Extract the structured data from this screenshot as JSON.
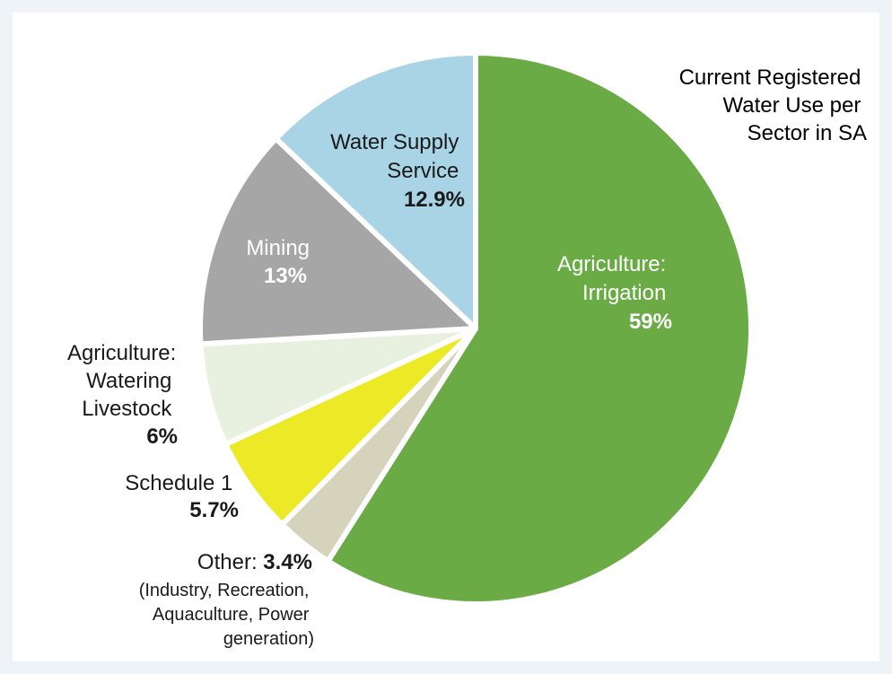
{
  "chart_data": {
    "type": "pie",
    "title": "Current Registered Water Use per Sector in SA",
    "title_lines": [
      "Current Registered",
      "Water Use per",
      "Sector in  SA"
    ],
    "slices": [
      {
        "name": "Agriculture: Irrigation",
        "name_lines": [
          "Agriculture:",
          "Irrigation"
        ],
        "value": 59,
        "label": "59%",
        "color": "#6aab45",
        "text_color": "#ffffff"
      },
      {
        "name": "Other",
        "name_lines": [
          "Other:"
        ],
        "value": 3.4,
        "label": "3.4%",
        "color": "#d6d3bd",
        "text_color": "#1a1a1a",
        "note_lines": [
          "(Industry, Recreation,",
          "Aquaculture, Power",
          "generation)"
        ]
      },
      {
        "name": "Schedule 1",
        "name_lines": [
          "Schedule 1"
        ],
        "value": 5.7,
        "label": "5.7%",
        "color": "#ece927",
        "text_color": "#1a1a1a"
      },
      {
        "name": "Agriculture: Watering Livestock",
        "name_lines": [
          "Agriculture:",
          "Watering",
          "Livestock"
        ],
        "value": 6,
        "label": "6%",
        "color": "#e8f0df",
        "text_color": "#1a1a1a"
      },
      {
        "name": "Mining",
        "name_lines": [
          "Mining"
        ],
        "value": 13,
        "label": "13%",
        "color": "#a6a6a6",
        "text_color": "#ffffff"
      },
      {
        "name": "Water Supply Service",
        "name_lines": [
          "Water Supply",
          "Service"
        ],
        "value": 12.9,
        "label": "12.9%",
        "color": "#a8d4e6",
        "text_color": "#1a1a1a"
      }
    ]
  }
}
